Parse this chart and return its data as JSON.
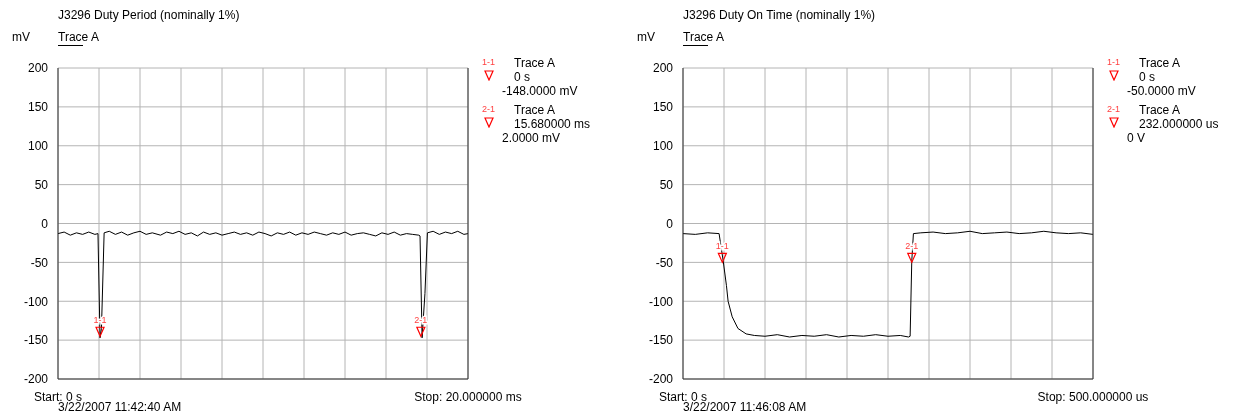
{
  "chart_data": [
    {
      "type": "line",
      "title": "J3296 Duty Period (nominally 1%)",
      "ylabel": "mV",
      "xlim": [
        0,
        20
      ],
      "xticks": [
        {
          "value": 0,
          "label": "Start: 0 s"
        },
        {
          "value": 2,
          "label": null
        },
        {
          "value": 4,
          "label": null
        },
        {
          "value": 6,
          "label": null
        },
        {
          "value": 8,
          "label": null
        },
        {
          "value": 10,
          "label": null
        },
        {
          "value": 12,
          "label": null
        },
        {
          "value": 14,
          "label": null
        },
        {
          "value": 16,
          "label": null
        },
        {
          "value": 18,
          "label": null
        },
        {
          "value": 20,
          "label": "Stop: 20.000000 ms"
        }
      ],
      "ylim": [
        -200,
        200
      ],
      "yticks": [
        -200,
        -150,
        -100,
        -50,
        0,
        50,
        100,
        150,
        200
      ],
      "grid": true,
      "legend": "top left",
      "series": [
        {
          "name": "Trace A",
          "color": "#000000",
          "x": [
            0,
            0.3,
            0.6,
            0.9,
            1.2,
            1.5,
            1.8,
            1.95,
            2.05,
            2.12,
            2.25,
            2.5,
            2.8,
            3.1,
            3.4,
            3.7,
            4.0,
            4.3,
            4.6,
            5.0,
            5.3,
            5.6,
            5.9,
            6.2,
            6.5,
            6.8,
            7.1,
            7.4,
            7.7,
            8.0,
            8.3,
            8.6,
            8.9,
            9.2,
            9.5,
            9.8,
            10.1,
            10.4,
            10.7,
            11.0,
            11.3,
            11.6,
            11.9,
            12.2,
            12.5,
            12.8,
            13.1,
            13.4,
            13.7,
            14.0,
            14.3,
            14.6,
            14.9,
            15.2,
            15.5,
            15.8,
            16.1,
            16.4,
            16.7,
            17.0,
            17.3,
            17.6,
            17.66,
            17.76,
            17.9,
            18.02,
            18.3,
            18.6,
            18.9,
            19.2,
            19.5,
            19.8,
            20
          ],
          "values": [
            -13,
            -11,
            -15,
            -12,
            -14,
            -11,
            -14,
            -13,
            -147,
            -135,
            -12,
            -10,
            -14,
            -11,
            -15,
            -12,
            -10,
            -14,
            -12,
            -15,
            -11,
            -13,
            -10,
            -14,
            -12,
            -16,
            -11,
            -14,
            -12,
            -15,
            -13,
            -11,
            -14,
            -12,
            -15,
            -11,
            -13,
            -16,
            -12,
            -14,
            -11,
            -15,
            -12,
            -14,
            -11,
            -13,
            -15,
            -12,
            -14,
            -11,
            -15,
            -13,
            -12,
            -14,
            -16,
            -12,
            -14,
            -11,
            -15,
            -13,
            -14,
            -15,
            -16,
            -147,
            -90,
            -12,
            -10,
            -14,
            -11,
            -13,
            -10,
            -14,
            -13
          ]
        }
      ],
      "annotations": [
        {
          "text": "1-1",
          "x": 2.05,
          "y": -145
        },
        {
          "text": "2-1",
          "x": 17.7,
          "y": -145
        },
        "1-1",
        "Trace A",
        "0 s",
        "-148.0000 mV",
        "2-1",
        "Trace A",
        "15.680000 ms",
        "2.0000 mV",
        "3/22/2007 11:42:40 AM"
      ]
    },
    {
      "type": "line",
      "title": "J3296 Duty On Time (nominally 1%)",
      "ylabel": "mV",
      "xlim": [
        0,
        500
      ],
      "xticks": [
        {
          "value": 0,
          "label": "Start: 0 s"
        },
        {
          "value": 50,
          "label": null
        },
        {
          "value": 100,
          "label": null
        },
        {
          "value": 150,
          "label": null
        },
        {
          "value": 200,
          "label": null
        },
        {
          "value": 250,
          "label": null
        },
        {
          "value": 300,
          "label": null
        },
        {
          "value": 350,
          "label": null
        },
        {
          "value": 400,
          "label": null
        },
        {
          "value": 450,
          "label": null
        },
        {
          "value": 500,
          "label": "Stop: 500.000000 us"
        }
      ],
      "ylim": [
        -200,
        200
      ],
      "yticks": [
        -200,
        -150,
        -100,
        -50,
        0,
        50,
        100,
        150,
        200
      ],
      "grid": true,
      "legend": "top left",
      "series": [
        {
          "name": "Trace A",
          "color": "#000000",
          "x": [
            0,
            15,
            30,
            44,
            49,
            53,
            55,
            60,
            67,
            77,
            87,
            100,
            115,
            130,
            145,
            160,
            175,
            190,
            205,
            220,
            235,
            250,
            265,
            275,
            277,
            279,
            281,
            290,
            305,
            320,
            335,
            350,
            365,
            380,
            395,
            410,
            425,
            440,
            455,
            470,
            485,
            500
          ],
          "values": [
            -13,
            -14,
            -12,
            -13,
            -48,
            -80,
            -100,
            -120,
            -135,
            -142,
            -144,
            -145,
            -143,
            -146,
            -144,
            -145,
            -143,
            -146,
            -144,
            -145,
            -143,
            -145,
            -144,
            -146,
            -145,
            -48,
            -13,
            -12,
            -11,
            -13,
            -12,
            -10,
            -13,
            -12,
            -11,
            -13,
            -12,
            -10,
            -12,
            -13,
            -12,
            -14
          ]
        }
      ],
      "annotations": [
        {
          "text": "1-1",
          "x": 48,
          "y": -50
        },
        {
          "text": "2-1",
          "x": 279,
          "y": -50
        },
        "1-1",
        "Trace A",
        "0 s",
        "-50.0000 mV",
        "2-1",
        "Trace A",
        "232.000000 us",
        "0 V",
        "3/22/2007 11:46:08 AM"
      ]
    }
  ]
}
